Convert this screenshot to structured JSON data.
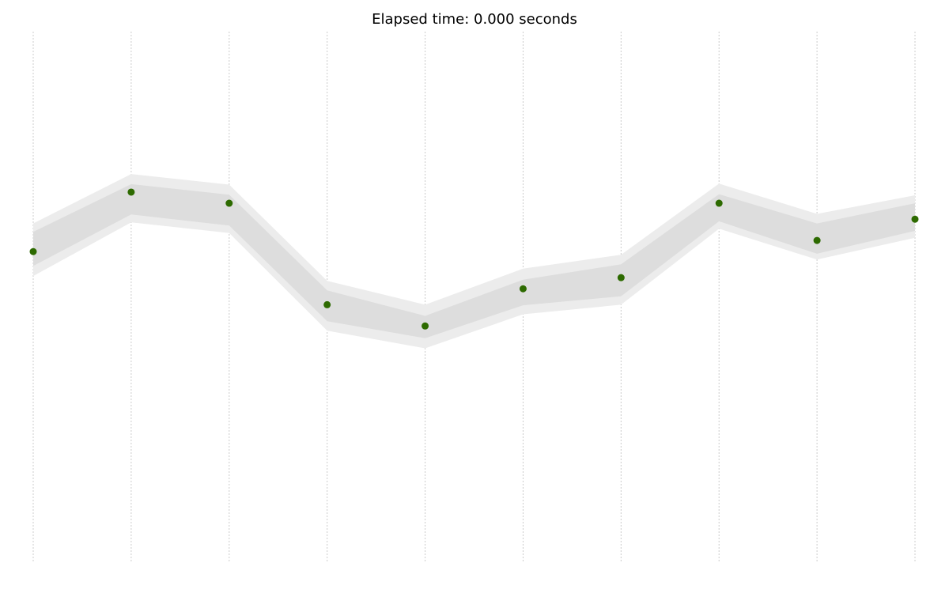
{
  "chart_data": {
    "type": "line",
    "title": "Elapsed time: 0.000 seconds",
    "xlabel": "",
    "ylabel": "",
    "x": [
      0,
      1,
      2,
      3,
      4,
      5,
      6,
      7,
      8,
      9
    ],
    "ylim": [
      0,
      100
    ],
    "series": [
      {
        "values": [
          58.6,
          69.8,
          67.7,
          48.6,
          44.6,
          51.6,
          53.7,
          67.7,
          60.7,
          64.7
        ],
        "marker_color": "#2d6a00",
        "inner_band": {
          "lower": [
            55.9,
            65.6,
            63.5,
            45.5,
            42.3,
            48.5,
            50.2,
            64.3,
            58.2,
            62.5
          ],
          "upper": [
            62.3,
            71.3,
            69.3,
            51.3,
            46.5,
            53.3,
            56.2,
            69.4,
            63.9,
            67.7
          ]
        },
        "outer_band": {
          "lower": [
            54.0,
            64.1,
            62.1,
            43.7,
            40.4,
            46.8,
            48.6,
            62.9,
            57.1,
            61.2
          ],
          "upper": [
            63.9,
            73.2,
            71.2,
            53.1,
            48.6,
            55.4,
            58.0,
            71.4,
            65.7,
            69.2
          ]
        }
      }
    ],
    "grid": {
      "x": true,
      "y": false,
      "style": "dotted",
      "color": "#cccccc"
    },
    "band_colors": {
      "outer": "#ececec",
      "inner": "#dddddd"
    },
    "legend": "none"
  }
}
